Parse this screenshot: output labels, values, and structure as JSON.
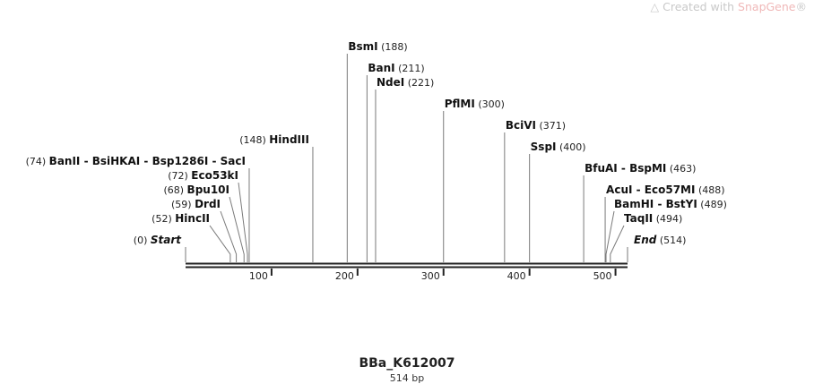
{
  "watermark": {
    "prefix": "Created with ",
    "brand": "SnapGene",
    "mark": "®"
  },
  "sequence": {
    "name": "BBa_K612007",
    "length_label": "514 bp",
    "length": 514
  },
  "colors": {
    "backbone": "#222222",
    "leader": "#7a7a7a",
    "watermark": "#c9c9c9",
    "brand": "#f0b8b8"
  },
  "axis": {
    "ticks": [
      100,
      200,
      300,
      400,
      500
    ]
  },
  "ends": [
    {
      "label": "Start",
      "pos": 0,
      "pos_label": "(0)",
      "side": "left"
    },
    {
      "label": "End",
      "pos": 514,
      "pos_label": "(514)",
      "side": "right"
    }
  ],
  "sites": [
    {
      "names": [
        "HincII"
      ],
      "pos": 52,
      "pos_label": "(52)",
      "side": "left"
    },
    {
      "names": [
        "DrdI"
      ],
      "pos": 59,
      "pos_label": "(59)",
      "side": "left"
    },
    {
      "names": [
        "Bpu10I"
      ],
      "pos": 68,
      "pos_label": "(68)",
      "side": "left"
    },
    {
      "names": [
        "Eco53kI"
      ],
      "pos": 72,
      "pos_label": "(72)",
      "side": "left"
    },
    {
      "names": [
        "BanII",
        "BsiHKAI",
        "Bsp1286I",
        "SacI"
      ],
      "pos": 74,
      "pos_label": "(74)",
      "side": "left"
    },
    {
      "names": [
        "HindIII"
      ],
      "pos": 148,
      "pos_label": "(148)",
      "side": "left"
    },
    {
      "names": [
        "BsmI"
      ],
      "pos": 188,
      "pos_label": "(188)",
      "side": "right"
    },
    {
      "names": [
        "BanI"
      ],
      "pos": 211,
      "pos_label": "(211)",
      "side": "right"
    },
    {
      "names": [
        "NdeI"
      ],
      "pos": 221,
      "pos_label": "(221)",
      "side": "right"
    },
    {
      "names": [
        "PflMI"
      ],
      "pos": 300,
      "pos_label": "(300)",
      "side": "right"
    },
    {
      "names": [
        "BciVI"
      ],
      "pos": 371,
      "pos_label": "(371)",
      "side": "right"
    },
    {
      "names": [
        "SspI"
      ],
      "pos": 400,
      "pos_label": "(400)",
      "side": "right"
    },
    {
      "names": [
        "BfuAI",
        "BspMI"
      ],
      "pos": 463,
      "pos_label": "(463)",
      "side": "right"
    },
    {
      "names": [
        "AcuI",
        "Eco57MI"
      ],
      "pos": 488,
      "pos_label": "(488)",
      "side": "right"
    },
    {
      "names": [
        "BamHI",
        "BstYI"
      ],
      "pos": 489,
      "pos_label": "(489)",
      "side": "right"
    },
    {
      "names": [
        "TaqII"
      ],
      "pos": 494,
      "pos_label": "(494)",
      "side": "right"
    }
  ]
}
